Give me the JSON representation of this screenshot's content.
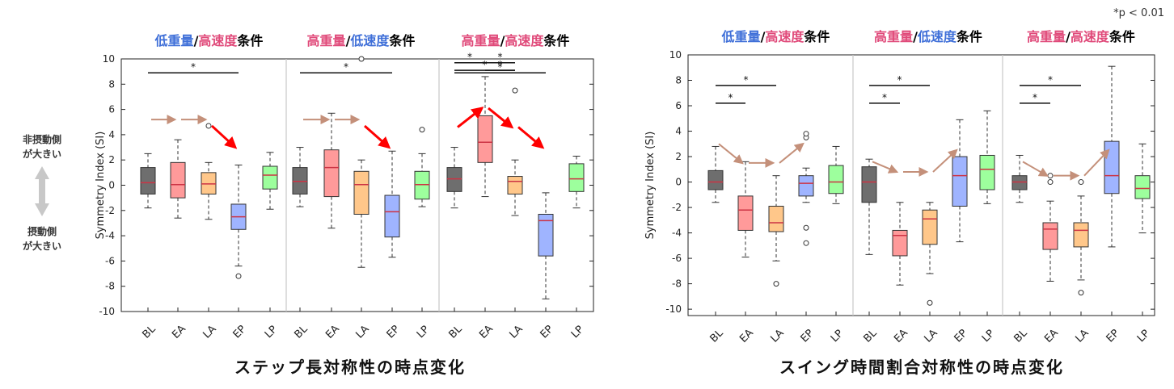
{
  "note": "*p < 0.01",
  "side_labels": {
    "top": [
      "非摂動側",
      "が大きい"
    ],
    "bottom": [
      "摂動側",
      "が大きい"
    ]
  },
  "colors": {
    "BL": "#6e6e6e",
    "EA": "#ff9a9a",
    "LA": "#ffc78a",
    "EP": "#9fb4ff",
    "LP": "#9dff9d",
    "blue_text": "#3f6fd8",
    "pink_text": "#e04a7a",
    "median": "#cc3344",
    "arrow_brown": "#c4907a",
    "arrow_red": "#ff0000"
  },
  "chart_data": [
    {
      "type": "box",
      "title": "ステップ長対称性の時点変化",
      "ylabel": "Symmetry Index (SI)",
      "ylim": [
        -10,
        10
      ],
      "yticks": [
        10,
        8,
        6,
        4,
        2,
        0,
        -2,
        -4,
        -6,
        -8,
        -10
      ],
      "categories": [
        "BL",
        "EA",
        "LA",
        "EP",
        "LP"
      ],
      "groups": [
        {
          "label": [
            {
              "text": "低重量",
              "color": "blue"
            },
            {
              "text": "/",
              "color": "black"
            },
            {
              "text": "高速度",
              "color": "pink"
            },
            {
              "text": "条件",
              "color": "black"
            }
          ],
          "boxes": [
            {
              "cat": "BL",
              "min": -1.8,
              "q1": -0.7,
              "median": 0.2,
              "q3": 1.4,
              "max": 2.5,
              "outliers": []
            },
            {
              "cat": "EA",
              "min": -2.6,
              "q1": -1.0,
              "median": 0.05,
              "q3": 1.8,
              "max": 3.6,
              "outliers": []
            },
            {
              "cat": "LA",
              "min": -2.7,
              "q1": -0.7,
              "median": 0.1,
              "q3": 1.0,
              "max": 1.8,
              "outliers": [
                4.7
              ]
            },
            {
              "cat": "EP",
              "min": -6.4,
              "q1": -3.5,
              "median": -2.5,
              "q3": -1.5,
              "max": 1.6,
              "outliers": [
                -7.2
              ]
            },
            {
              "cat": "LP",
              "min": -1.9,
              "q1": -0.3,
              "median": 0.8,
              "q3": 1.5,
              "max": 2.6,
              "outliers": []
            }
          ],
          "sig": [
            {
              "from": "BL",
              "to": "EP",
              "y": 8.9,
              "label": "*"
            }
          ],
          "arrows": [
            {
              "x1": "BL",
              "y1": 5.2,
              "x2": "EA",
              "y2": 5.2,
              "color": "brown"
            },
            {
              "x1": "EA",
              "y1": 5.2,
              "x2": "LA",
              "y2": 5.2,
              "color": "brown"
            },
            {
              "x1": "LA",
              "y1": 4.7,
              "x2": "EP",
              "y2": 3.0,
              "color": "red"
            }
          ]
        },
        {
          "label": [
            {
              "text": "高重量",
              "color": "pink"
            },
            {
              "text": "/",
              "color": "black"
            },
            {
              "text": "低速度",
              "color": "blue"
            },
            {
              "text": "条件",
              "color": "black"
            }
          ],
          "boxes": [
            {
              "cat": "BL",
              "min": -1.7,
              "q1": -0.7,
              "median": 0.3,
              "q3": 1.4,
              "max": 3.0,
              "outliers": []
            },
            {
              "cat": "EA",
              "min": -3.4,
              "q1": -0.9,
              "median": 1.4,
              "q3": 2.8,
              "max": 5.7,
              "outliers": []
            },
            {
              "cat": "LA",
              "min": -6.5,
              "q1": -2.3,
              "median": 0.05,
              "q3": 1.1,
              "max": 2.0,
              "outliers": [
                10.0
              ]
            },
            {
              "cat": "EP",
              "min": -5.7,
              "q1": -4.1,
              "median": -2.1,
              "q3": -0.8,
              "max": 2.7,
              "outliers": []
            },
            {
              "cat": "LP",
              "min": -1.7,
              "q1": -1.1,
              "median": 0.05,
              "q3": 1.1,
              "max": 2.5,
              "outliers": [
                4.4
              ]
            }
          ],
          "sig": [
            {
              "from": "BL",
              "to": "EP",
              "y": 8.9,
              "label": "*"
            }
          ],
          "arrows": [
            {
              "x1": "BL",
              "y1": 5.2,
              "x2": "EA",
              "y2": 5.2,
              "color": "brown"
            },
            {
              "x1": "EA",
              "y1": 5.2,
              "x2": "LA",
              "y2": 5.2,
              "color": "brown"
            },
            {
              "x1": "LA",
              "y1": 4.7,
              "x2": "EP",
              "y2": 3.0,
              "color": "red"
            }
          ]
        },
        {
          "label": [
            {
              "text": "高重量",
              "color": "pink"
            },
            {
              "text": "/",
              "color": "black"
            },
            {
              "text": "高速度",
              "color": "pink"
            },
            {
              "text": "条件",
              "color": "black"
            }
          ],
          "boxes": [
            {
              "cat": "BL",
              "min": -1.8,
              "q1": -0.5,
              "median": 0.5,
              "q3": 1.4,
              "max": 3.0,
              "outliers": []
            },
            {
              "cat": "EA",
              "min": -0.9,
              "q1": 1.8,
              "median": 3.4,
              "q3": 5.5,
              "max": 8.6,
              "outliers": []
            },
            {
              "cat": "LA",
              "min": -2.4,
              "q1": -0.7,
              "median": 0.3,
              "q3": 0.7,
              "max": 2.0,
              "outliers": [
                7.5
              ]
            },
            {
              "cat": "EP",
              "min": -9.0,
              "q1": -5.6,
              "median": -2.8,
              "q3": -2.3,
              "max": -0.6,
              "outliers": []
            },
            {
              "cat": "LP",
              "min": -1.8,
              "q1": -0.5,
              "median": 0.5,
              "q3": 1.7,
              "max": 2.3,
              "outliers": []
            }
          ],
          "sig": [
            {
              "from": "BL",
              "to": "EA",
              "y": 9.7,
              "label": "*"
            },
            {
              "from": "EA",
              "to": "LA",
              "y": 9.7,
              "label": "*"
            },
            {
              "from": "BL",
              "to": "LA",
              "y": 9.1,
              "label": "*"
            },
            {
              "from": "EA",
              "to": "LA",
              "y": 9.1,
              "label": "*"
            },
            {
              "from": "BL",
              "to": "EP",
              "y": 8.9,
              "label": "*"
            }
          ],
          "arrows": [
            {
              "x1": "BL",
              "y1": 4.6,
              "x2": "EA",
              "y2": 6.1,
              "color": "red"
            },
            {
              "x1": "EA",
              "y1": 6.1,
              "x2": "LA",
              "y2": 4.6,
              "color": "red"
            },
            {
              "x1": "LA",
              "y1": 4.6,
              "x2": "EP",
              "y2": 3.0,
              "color": "red"
            }
          ]
        }
      ]
    },
    {
      "type": "box",
      "title": "スイング時間割合対称性の時点変化",
      "ylabel": "Symmetry Index (SI)",
      "ylim": [
        -10.5,
        10
      ],
      "yticks": [
        10,
        8,
        6,
        4,
        2,
        0,
        -2,
        -4,
        -6,
        -8,
        -10
      ],
      "categories": [
        "BL",
        "EA",
        "LA",
        "EP",
        "LP"
      ],
      "groups": [
        {
          "label": [
            {
              "text": "低重量",
              "color": "blue"
            },
            {
              "text": "/",
              "color": "black"
            },
            {
              "text": "高速度",
              "color": "pink"
            },
            {
              "text": "条件",
              "color": "black"
            }
          ],
          "boxes": [
            {
              "cat": "BL",
              "min": -1.6,
              "q1": -0.6,
              "median": 0.0,
              "q3": 0.9,
              "max": 2.8,
              "outliers": []
            },
            {
              "cat": "EA",
              "min": -5.9,
              "q1": -3.8,
              "median": -2.2,
              "q3": -1.1,
              "max": 1.6,
              "outliers": []
            },
            {
              "cat": "LA",
              "min": -6.2,
              "q1": -3.9,
              "median": -3.2,
              "q3": -1.9,
              "max": 0.5,
              "outliers": [
                -8.0
              ]
            },
            {
              "cat": "EP",
              "min": -1.6,
              "q1": -1.1,
              "median": -0.1,
              "q3": 0.5,
              "max": 1.1,
              "outliers": [
                3.5,
                3.8,
                -3.6,
                -4.8
              ]
            },
            {
              "cat": "LP",
              "min": -1.7,
              "q1": -0.9,
              "median": 0.0,
              "q3": 1.3,
              "max": 2.8,
              "outliers": []
            }
          ],
          "sig": [
            {
              "from": "BL",
              "to": "LA",
              "y": 7.6,
              "label": "*"
            },
            {
              "from": "BL",
              "to": "EA",
              "y": 6.2,
              "label": "*"
            }
          ],
          "arrows": [
            {
              "x1": "BL",
              "y1": 3.0,
              "x2": "EA",
              "y2": 1.5,
              "color": "brown"
            },
            {
              "x1": "EA",
              "y1": 1.5,
              "x2": "LA",
              "y2": 1.5,
              "color": "brown"
            },
            {
              "x1": "LA",
              "y1": 1.5,
              "x2": "EP",
              "y2": 3.0,
              "color": "brown"
            }
          ]
        },
        {
          "label": [
            {
              "text": "高重量",
              "color": "pink"
            },
            {
              "text": "/",
              "color": "black"
            },
            {
              "text": "低速度",
              "color": "blue"
            },
            {
              "text": "条件",
              "color": "black"
            }
          ],
          "boxes": [
            {
              "cat": "BL",
              "min": -5.7,
              "q1": -1.6,
              "median": 0.0,
              "q3": 1.2,
              "max": 1.8,
              "outliers": []
            },
            {
              "cat": "EA",
              "min": -8.1,
              "q1": -5.8,
              "median": -4.2,
              "q3": -3.8,
              "max": -1.6,
              "outliers": []
            },
            {
              "cat": "LA",
              "min": -7.2,
              "q1": -4.9,
              "median": -2.9,
              "q3": -2.2,
              "max": -1.6,
              "outliers": [
                -9.5
              ]
            },
            {
              "cat": "EP",
              "min": -4.7,
              "q1": -1.9,
              "median": 0.5,
              "q3": 2.0,
              "max": 4.9,
              "outliers": []
            },
            {
              "cat": "LP",
              "min": -1.7,
              "q1": -0.6,
              "median": 1.0,
              "q3": 2.1,
              "max": 5.6,
              "outliers": []
            }
          ],
          "sig": [
            {
              "from": "BL",
              "to": "LA",
              "y": 7.6,
              "label": "*"
            },
            {
              "from": "BL",
              "to": "EA",
              "y": 6.2,
              "label": "*"
            }
          ],
          "arrows": [
            {
              "x1": "BL",
              "y1": 1.6,
              "x2": "EA",
              "y2": 0.8,
              "color": "brown"
            },
            {
              "x1": "EA",
              "y1": 0.8,
              "x2": "LA",
              "y2": 0.8,
              "color": "brown"
            },
            {
              "x1": "LA",
              "y1": 0.8,
              "x2": "EP",
              "y2": 2.5,
              "color": "brown"
            }
          ]
        },
        {
          "label": [
            {
              "text": "高重量",
              "color": "pink"
            },
            {
              "text": "/",
              "color": "black"
            },
            {
              "text": "高速度",
              "color": "pink"
            },
            {
              "text": "条件",
              "color": "black"
            }
          ],
          "boxes": [
            {
              "cat": "BL",
              "min": -1.6,
              "q1": -0.6,
              "median": 0.0,
              "q3": 0.5,
              "max": 2.1,
              "outliers": []
            },
            {
              "cat": "EA",
              "min": -7.8,
              "q1": -5.3,
              "median": -3.7,
              "q3": -3.2,
              "max": -1.5,
              "outliers": [
                0.0,
                0.5
              ]
            },
            {
              "cat": "LA",
              "min": -7.7,
              "q1": -5.1,
              "median": -3.8,
              "q3": -3.2,
              "max": -1.1,
              "outliers": [
                0.0,
                -8.7
              ]
            },
            {
              "cat": "EP",
              "min": -5.1,
              "q1": -0.9,
              "median": 0.5,
              "q3": 3.2,
              "max": 9.1,
              "outliers": []
            },
            {
              "cat": "LP",
              "min": -4.0,
              "q1": -1.3,
              "median": -0.5,
              "q3": 0.5,
              "max": 3.0,
              "outliers": []
            }
          ],
          "sig": [
            {
              "from": "BL",
              "to": "LA",
              "y": 7.6,
              "label": "*"
            },
            {
              "from": "BL",
              "to": "EA",
              "y": 6.2,
              "label": "*"
            }
          ],
          "arrows": [
            {
              "x1": "BL",
              "y1": 1.6,
              "x2": "EA",
              "y2": 0.5,
              "color": "brown"
            },
            {
              "x1": "EA",
              "y1": 0.5,
              "x2": "LA",
              "y2": 0.5,
              "color": "brown"
            },
            {
              "x1": "LA",
              "y1": 0.5,
              "x2": "EP",
              "y2": 2.5,
              "color": "brown"
            }
          ]
        }
      ]
    }
  ]
}
